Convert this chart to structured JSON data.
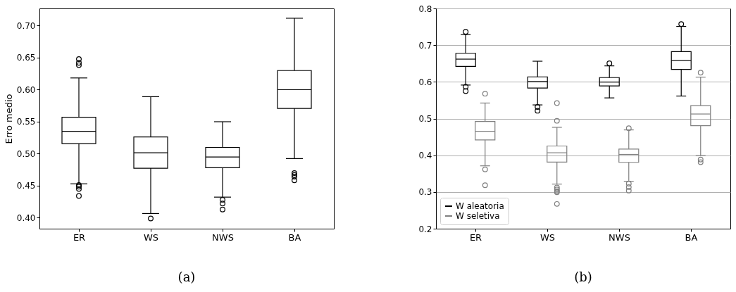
{
  "chart_data": [
    {
      "type": "box",
      "ylabel": "Erro medio",
      "categories": [
        "ER",
        "WS",
        "NWS",
        "BA"
      ],
      "ylim": [
        0.3825,
        0.7266
      ],
      "yticks": [
        {
          "value": 0.4,
          "label": "0.40"
        },
        {
          "value": 0.45,
          "label": "0.45"
        },
        {
          "value": 0.5,
          "label": "0.50"
        },
        {
          "value": 0.55,
          "label": "0.55"
        },
        {
          "value": 0.6,
          "label": "0.60"
        },
        {
          "value": 0.65,
          "label": "0.65"
        },
        {
          "value": 0.7,
          "label": "0.70"
        }
      ],
      "grid": false,
      "legend": false,
      "annotations": [
        "(a)"
      ],
      "series": [
        {
          "color": "#000000",
          "boxes": [
            {
              "low": 0.4526,
              "q1": 0.5153,
              "median": 0.5347,
              "q3": 0.5566,
              "high": 0.618,
              "outliers": [
                0.6474,
                0.6416,
                0.638,
                0.4507,
                0.4482,
                0.4445,
                0.4336
              ]
            },
            {
              "low": 0.4062,
              "q1": 0.477,
              "median": 0.5011,
              "q3": 0.5259,
              "high": 0.5887,
              "outliers": [
                0.3985
              ]
            },
            {
              "low": 0.4318,
              "q1": 0.4777,
              "median": 0.4945,
              "q3": 0.5095,
              "high": 0.5496,
              "outliers": [
                0.4277,
                0.4219,
                0.4124
              ]
            },
            {
              "low": 0.492,
              "q1": 0.5704,
              "median": 0.5996,
              "q3": 0.6296,
              "high": 0.7113,
              "outliers": [
                0.4693,
                0.4664,
                0.4639,
                0.458
              ]
            }
          ]
        }
      ]
    },
    {
      "type": "box",
      "categories": [
        "ER",
        "WS",
        "NWS",
        "BA"
      ],
      "ylim": [
        0.2,
        0.8
      ],
      "yticks": [
        0.2,
        0.3,
        0.4,
        0.5,
        0.6,
        0.7,
        0.8
      ],
      "grid": "y",
      "legend": "bottom left",
      "annotations": [
        "(b)"
      ],
      "series": [
        {
          "name": "W aleatoria",
          "color": "#000000",
          "boxes": [
            {
              "low": 0.5913,
              "q1": 0.6422,
              "median": 0.6619,
              "q3": 0.6778,
              "high": 0.7287,
              "outliers": [
                0.7364,
                0.5868,
                0.5748
              ]
            },
            {
              "low": 0.5372,
              "q1": 0.583,
              "median": 0.6008,
              "q3": 0.6136,
              "high": 0.6562,
              "outliers": [
                0.5315,
                0.5213
              ]
            },
            {
              "low": 0.5563,
              "q1": 0.5888,
              "median": 0.5996,
              "q3": 0.6117,
              "high": 0.6435,
              "outliers": [
                0.6505
              ]
            },
            {
              "low": 0.5614,
              "q1": 0.6339,
              "median": 0.6587,
              "q3": 0.6823,
              "high": 0.751,
              "outliers": [
                0.7574
              ]
            }
          ]
        },
        {
          "name": "W seletiva",
          "color": "#808080",
          "boxes": [
            {
              "low": 0.3712,
              "q1": 0.4418,
              "median": 0.4653,
              "q3": 0.492,
              "high": 0.5423,
              "outliers": [
                0.5678,
                0.3616,
                0.3183
              ]
            },
            {
              "low": 0.3215,
              "q1": 0.3813,
              "median": 0.4068,
              "q3": 0.4252,
              "high": 0.4761,
              "outliers": [
                0.5423,
                0.494,
                0.312,
                0.3069,
                0.3024,
                0.2993,
                0.2674
              ]
            },
            {
              "low": 0.3292,
              "q1": 0.3807,
              "median": 0.4023,
              "q3": 0.417,
              "high": 0.4691,
              "outliers": [
                0.4736,
                0.3228,
                0.3133,
                0.3037
              ]
            },
            {
              "low": 0.3991,
              "q1": 0.4806,
              "median": 0.5124,
              "q3": 0.5353,
              "high": 0.6129,
              "outliers": [
                0.625,
                0.3883,
                0.3813
              ]
            }
          ]
        }
      ]
    }
  ]
}
